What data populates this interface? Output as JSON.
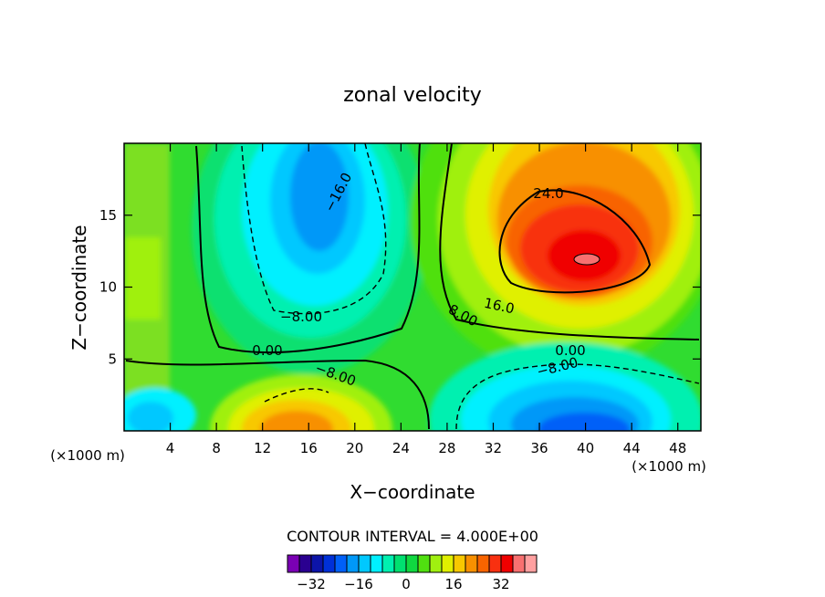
{
  "chart_data": {
    "type": "heatmap",
    "title": "zonal velocity",
    "xlabel": "X−coordinate",
    "ylabel": "Z−coordinate",
    "x_unit_left": "(×1000 m)",
    "x_unit_right": "(×1000 m)",
    "xlim": [
      0,
      50
    ],
    "ylim": [
      0,
      20
    ],
    "x_ticks": [
      4,
      8,
      12,
      16,
      20,
      24,
      28,
      32,
      36,
      40,
      44,
      48
    ],
    "y_ticks": [
      5,
      10,
      15
    ],
    "contour_interval_text": "CONTOUR INTERVAL = 4.000E+00",
    "contour_labels": [
      "24.0",
      "16.0",
      "8.00",
      "0.00",
      "−8.00",
      "−16.0"
    ],
    "colorbar": {
      "levels": [
        -36,
        -32,
        -28,
        -24,
        -20,
        -16,
        -12,
        -8,
        -4,
        0,
        4,
        8,
        12,
        16,
        20,
        24,
        28,
        32,
        36
      ],
      "colors": [
        "#7a00b4",
        "#2a0090",
        "#0c14a8",
        "#0030d8",
        "#0060f8",
        "#0098f8",
        "#00c8ff",
        "#00f0ff",
        "#00f0b0",
        "#00e070",
        "#10d840",
        "#50e010",
        "#a0f010",
        "#e0f000",
        "#f8c800",
        "#f89000",
        "#f86400",
        "#f83010",
        "#f00000",
        "#f87070",
        "#ffa0a0"
      ],
      "tick_values": [
        -32,
        -16,
        0,
        16,
        32
      ],
      "tick_labels": [
        "−32",
        "−16",
        "0",
        "16",
        "32"
      ]
    },
    "features": [
      {
        "kind": "max",
        "x": 40,
        "z": 12,
        "value": 40
      },
      {
        "kind": "min",
        "x": 17.5,
        "z": 16,
        "value": -20
      },
      {
        "kind": "max",
        "x": 17,
        "z": 2,
        "value": 24
      },
      {
        "kind": "min",
        "x": 39,
        "z": 1.5,
        "value": -28
      }
    ],
    "grid": false
  }
}
